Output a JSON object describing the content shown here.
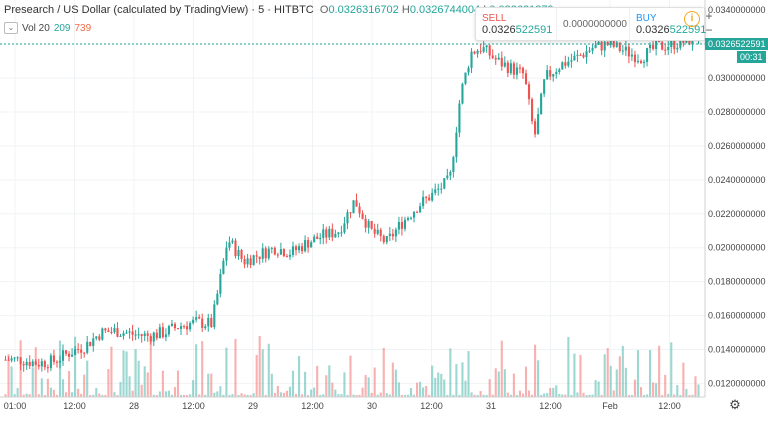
{
  "legend": {
    "title": "Presearch / US Dollar (calculated by TradingView) · 5 · HITBTC",
    "o_key": "O",
    "o_val": "0.0326316702",
    "h_key": "H",
    "h_val": "0.0326744004",
    "l_key": "L",
    "l_val": "0.032621879"
  },
  "volume_legend": {
    "label": "Vol 20",
    "v1": "209",
    "v2": "739",
    "collapse_icon": "chevron-down-icon"
  },
  "trade_panel": {
    "sell_label": "SELL",
    "sell_price_head": "0.0326",
    "sell_price_tail": "522591",
    "mid_value": "0.0000000000",
    "buy_label": "BUY",
    "buy_price_head": "0.0326",
    "buy_price_tail": "522591",
    "info_icon": "info-icon"
  },
  "zoom": {
    "plus": "+",
    "minus": "−"
  },
  "price_axis": {
    "labels": [
      "0.0340000000",
      "0.0320000000",
      "0.0300000000",
      "0.0280000000",
      "0.0260000000",
      "0.0240000000",
      "0.0220000000",
      "0.0200000000",
      "0.0180000000",
      "0.0160000000",
      "0.0140000000",
      "0.0120000000"
    ],
    "current_price": "0.0326522591",
    "countdown": "00:31"
  },
  "time_axis": {
    "labels": [
      "01:00",
      "12:00",
      "28",
      "12:00",
      "29",
      "12:00",
      "30",
      "12:00",
      "31",
      "12:00",
      "Feb",
      "12:00"
    ]
  },
  "settings_icon": "gear-icon",
  "colors": {
    "up": "#26a69a",
    "down": "#ef5350",
    "last_price": "#26a69a",
    "accent": "#2196f3"
  },
  "chart_data": {
    "type": "candlestick",
    "ylim": [
      0.0112,
      0.0346
    ],
    "price_path": [
      [
        0,
        0.0134
      ],
      [
        3,
        0.0134
      ],
      [
        6,
        0.0132
      ],
      [
        9,
        0.0133
      ],
      [
        12,
        0.0138
      ],
      [
        15,
        0.0142
      ],
      [
        18,
        0.015
      ],
      [
        21,
        0.0151
      ],
      [
        24,
        0.0149
      ],
      [
        27,
        0.0148
      ],
      [
        30,
        0.015
      ],
      [
        33,
        0.0154
      ],
      [
        36,
        0.0156
      ],
      [
        39,
        0.0155
      ],
      [
        42,
        0.0205
      ],
      [
        45,
        0.0192
      ],
      [
        48,
        0.0196
      ],
      [
        51,
        0.02
      ],
      [
        54,
        0.0197
      ],
      [
        57,
        0.0203
      ],
      [
        60,
        0.0207
      ],
      [
        63,
        0.021
      ],
      [
        66,
        0.0228
      ],
      [
        69,
        0.021
      ],
      [
        72,
        0.0203
      ],
      [
        75,
        0.0215
      ],
      [
        78,
        0.0225
      ],
      [
        81,
        0.0232
      ],
      [
        84,
        0.024
      ],
      [
        86,
        0.029
      ],
      [
        88,
        0.0315
      ],
      [
        90,
        0.0318
      ],
      [
        93,
        0.031
      ],
      [
        96,
        0.0305
      ],
      [
        98,
        0.0302
      ],
      [
        100,
        0.0265
      ],
      [
        102,
        0.03
      ],
      [
        105,
        0.0308
      ],
      [
        108,
        0.0312
      ],
      [
        111,
        0.0318
      ],
      [
        114,
        0.032
      ],
      [
        117,
        0.0316
      ],
      [
        120,
        0.0312
      ],
      [
        123,
        0.0318
      ],
      [
        126,
        0.032
      ],
      [
        129,
        0.0322
      ],
      [
        131,
        0.0326
      ]
    ],
    "volume_max": 739
  }
}
